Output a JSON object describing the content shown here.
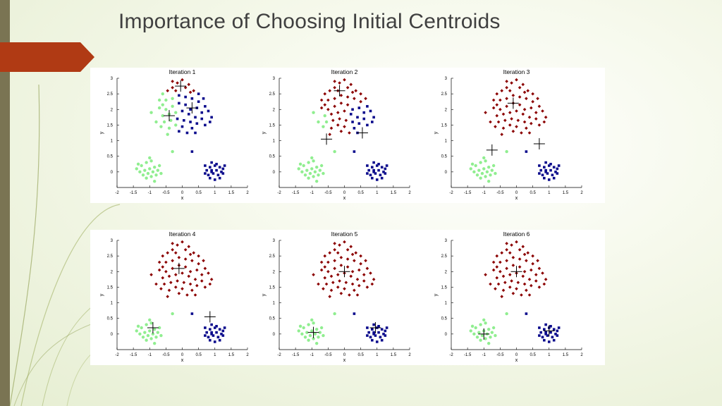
{
  "slide": {
    "title": "Importance of Choosing Initial Centroids"
  },
  "colors": {
    "cluster_red": "#8b0000",
    "cluster_blue": "#0a0a8c",
    "cluster_green": "#90ee90",
    "centroid": "#000000",
    "accent_arrow": "#b03a14",
    "left_bar": "#7a7453"
  },
  "chart_data": [
    {
      "type": "scatter",
      "title": "Iteration 1",
      "xlabel": "x",
      "ylabel": "y",
      "xlim": [
        -2,
        2
      ],
      "ylim": [
        -0.5,
        3
      ],
      "xticks": [
        "-2",
        "-1.5",
        "-1",
        "-0.5",
        "0",
        "0.5",
        "1",
        "1.5",
        "2"
      ],
      "yticks": [
        "0",
        "0.5",
        "1",
        "1.5",
        "2",
        "2.5",
        "3"
      ],
      "centroids": [
        [
          -0.05,
          2.75
        ],
        [
          0.3,
          2.05
        ],
        [
          -0.4,
          1.8
        ]
      ],
      "assignment": "iter1"
    },
    {
      "type": "scatter",
      "title": "Iteration 2",
      "xlabel": "x",
      "ylabel": "y",
      "xlim": [
        -2,
        2
      ],
      "ylim": [
        -0.5,
        3
      ],
      "xticks": [
        "-2",
        "-1.5",
        "-1",
        "-0.5",
        "0",
        "0.5",
        "1",
        "1.5",
        "2"
      ],
      "yticks": [
        "0",
        "0.5",
        "1",
        "1.5",
        "2",
        "2.5",
        "3"
      ],
      "centroids": [
        [
          -0.15,
          2.6
        ],
        [
          -0.55,
          1.05
        ],
        [
          0.55,
          1.25
        ]
      ],
      "assignment": "iter2"
    },
    {
      "type": "scatter",
      "title": "Iteration 3",
      "xlabel": "x",
      "ylabel": "y",
      "xlim": [
        -2,
        2
      ],
      "ylim": [
        -0.5,
        3
      ],
      "xticks": [
        "-2",
        "-1.5",
        "-1",
        "-0.5",
        "0",
        "0.5",
        "1",
        "1.5",
        "2"
      ],
      "yticks": [
        "0",
        "0.5",
        "1",
        "1.5",
        "2",
        "2.5",
        "3"
      ],
      "centroids": [
        [
          -0.1,
          2.2
        ],
        [
          -0.75,
          0.7
        ],
        [
          0.7,
          0.9
        ]
      ],
      "assignment": "late"
    },
    {
      "type": "scatter",
      "title": "Iteration 4",
      "xlabel": "x",
      "ylabel": "y",
      "xlim": [
        -2,
        2
      ],
      "ylim": [
        -0.5,
        3
      ],
      "xticks": [
        "-2",
        "-1.5",
        "-1",
        "-0.5",
        "0",
        "0.5",
        "1",
        "1.5",
        "2"
      ],
      "yticks": [
        "0",
        "0.5",
        "1",
        "1.5",
        "2",
        "2.5",
        "3"
      ],
      "centroids": [
        [
          -0.1,
          2.1
        ],
        [
          -0.9,
          0.2
        ],
        [
          0.85,
          0.55
        ]
      ],
      "assignment": "late"
    },
    {
      "type": "scatter",
      "title": "Iteration 5",
      "xlabel": "x",
      "ylabel": "y",
      "xlim": [
        -2,
        2
      ],
      "ylim": [
        -0.5,
        3
      ],
      "xticks": [
        "-2",
        "-1.5",
        "-1",
        "-0.5",
        "0",
        "0.5",
        "1",
        "1.5",
        "2"
      ],
      "yticks": [
        "0",
        "0.5",
        "1",
        "1.5",
        "2",
        "2.5",
        "3"
      ],
      "centroids": [
        [
          0.0,
          2.0
        ],
        [
          -0.95,
          0.05
        ],
        [
          0.95,
          0.2
        ]
      ],
      "assignment": "late"
    },
    {
      "type": "scatter",
      "title": "Iteration 6",
      "xlabel": "x",
      "ylabel": "y",
      "xlim": [
        -2,
        2
      ],
      "ylim": [
        -0.5,
        3
      ],
      "xticks": [
        "-2",
        "-1.5",
        "-1",
        "-0.5",
        "0",
        "0.5",
        "1",
        "1.5",
        "2"
      ],
      "yticks": [
        "0",
        "0.5",
        "1",
        "1.5",
        "2",
        "2.5",
        "3"
      ],
      "centroids": [
        [
          0.0,
          2.0
        ],
        [
          -1.0,
          0.0
        ],
        [
          1.0,
          0.1
        ]
      ],
      "assignment": "late"
    }
  ],
  "points": {
    "blob_top": [
      [
        -0.6,
        2.5
      ],
      [
        -0.45,
        2.6
      ],
      [
        -0.3,
        2.7
      ],
      [
        -0.15,
        2.85
      ],
      [
        0.0,
        2.95
      ],
      [
        0.2,
        2.8
      ],
      [
        0.35,
        2.6
      ],
      [
        0.5,
        2.5
      ],
      [
        -0.5,
        2.3
      ],
      [
        -0.3,
        2.35
      ],
      [
        -0.1,
        2.45
      ],
      [
        0.1,
        2.4
      ],
      [
        0.3,
        2.35
      ],
      [
        0.5,
        2.25
      ],
      [
        0.7,
        2.1
      ],
      [
        -0.7,
        2.05
      ],
      [
        -0.5,
        2.0
      ],
      [
        -0.3,
        2.1
      ],
      [
        -0.1,
        2.2
      ],
      [
        0.1,
        2.15
      ],
      [
        0.25,
        2.0
      ],
      [
        0.45,
        2.05
      ],
      [
        0.6,
        1.9
      ],
      [
        0.8,
        1.95
      ],
      [
        -0.6,
        1.8
      ],
      [
        -0.4,
        1.85
      ],
      [
        -0.2,
        1.9
      ],
      [
        0.0,
        1.95
      ],
      [
        0.2,
        1.85
      ],
      [
        0.4,
        1.75
      ],
      [
        0.6,
        1.7
      ],
      [
        -0.8,
        1.6
      ],
      [
        -0.55,
        1.6
      ],
      [
        -0.35,
        1.65
      ],
      [
        -0.15,
        1.7
      ],
      [
        0.05,
        1.65
      ],
      [
        0.25,
        1.6
      ],
      [
        0.45,
        1.55
      ],
      [
        0.7,
        1.5
      ],
      [
        -0.65,
        1.45
      ],
      [
        -0.4,
        1.4
      ],
      [
        -0.2,
        1.5
      ],
      [
        0.0,
        1.45
      ],
      [
        0.3,
        1.4
      ],
      [
        -0.3,
        2.9
      ],
      [
        0.1,
        2.7
      ],
      [
        -0.7,
        2.3
      ],
      [
        0.65,
        2.35
      ],
      [
        -0.95,
        1.9
      ],
      [
        0.85,
        1.6
      ],
      [
        -0.1,
        1.3
      ],
      [
        0.15,
        1.25
      ],
      [
        -0.45,
        1.2
      ],
      [
        0.4,
        1.25
      ],
      [
        -0.2,
        2.6
      ],
      [
        0.25,
        2.55
      ],
      [
        -0.6,
        2.15
      ],
      [
        0.9,
        1.75
      ]
    ],
    "blob_green": [
      [
        -1.4,
        0.1
      ],
      [
        -1.25,
        0.2
      ],
      [
        -1.1,
        0.3
      ],
      [
        -0.95,
        0.35
      ],
      [
        -1.3,
        0.0
      ],
      [
        -1.15,
        0.05
      ],
      [
        -1.0,
        0.1
      ],
      [
        -0.85,
        0.15
      ],
      [
        -1.2,
        -0.1
      ],
      [
        -1.05,
        -0.05
      ],
      [
        -0.9,
        0.0
      ],
      [
        -0.75,
        0.05
      ],
      [
        -1.1,
        -0.2
      ],
      [
        -0.95,
        -0.15
      ],
      [
        -0.8,
        -0.1
      ],
      [
        -1.0,
        0.45
      ],
      [
        -0.7,
        0.2
      ],
      [
        -1.35,
        0.25
      ],
      [
        -0.65,
        -0.05
      ],
      [
        -0.85,
        -0.3
      ]
    ],
    "blob_blue": [
      [
        0.7,
        0.2
      ],
      [
        0.85,
        0.15
      ],
      [
        1.0,
        0.2
      ],
      [
        1.15,
        0.15
      ],
      [
        1.25,
        0.1
      ],
      [
        0.75,
        0.05
      ],
      [
        0.9,
        0.0
      ],
      [
        1.05,
        0.05
      ],
      [
        1.2,
        0.0
      ],
      [
        0.8,
        -0.1
      ],
      [
        0.95,
        -0.05
      ],
      [
        1.1,
        -0.1
      ],
      [
        1.25,
        -0.05
      ],
      [
        0.85,
        -0.2
      ],
      [
        1.0,
        -0.25
      ],
      [
        1.15,
        -0.2
      ],
      [
        0.9,
        0.3
      ],
      [
        1.05,
        0.25
      ],
      [
        0.7,
        -0.05
      ],
      [
        1.3,
        0.2
      ]
    ],
    "stray": [
      [
        -0.3,
        0.65
      ],
      [
        0.3,
        0.65
      ],
      [
        0.9,
        0.05
      ]
    ]
  }
}
